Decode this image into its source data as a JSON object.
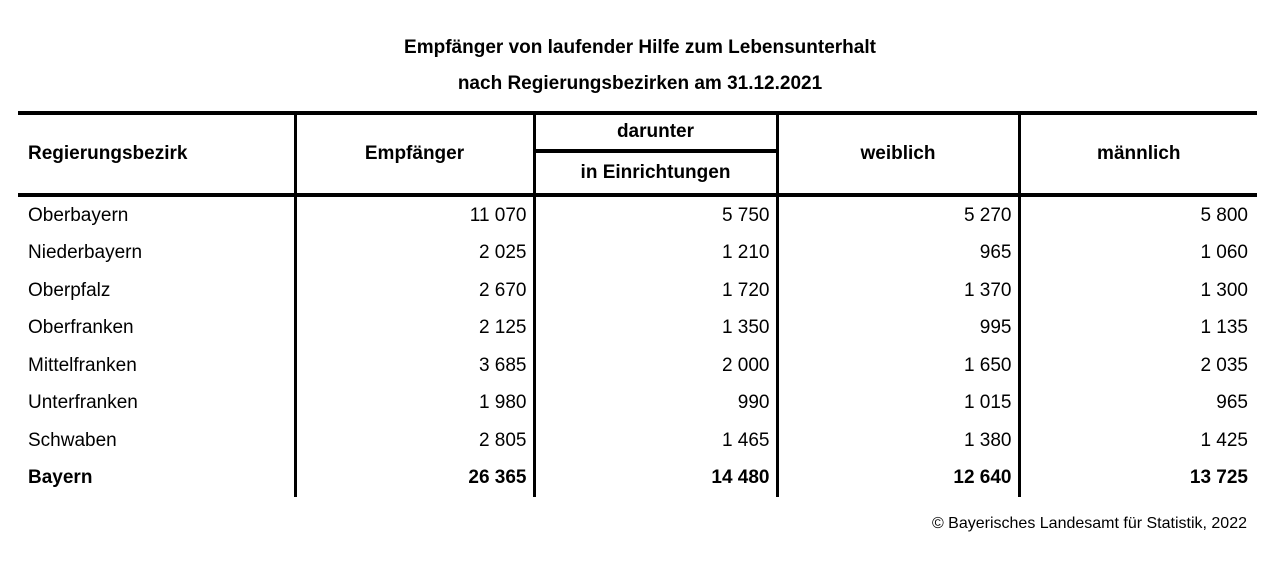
{
  "title": {
    "line1": "Empfänger von laufender Hilfe zum Lebensunterhalt",
    "line2": "nach Regierungsbezirken am 31.12.2021"
  },
  "table": {
    "columns": {
      "region": "Regierungsbezirk",
      "recipients": "Empfänger",
      "subgroup": "darunter",
      "subgroup_sub": "in Einrichtungen",
      "female": "weiblich",
      "male": "männlich"
    },
    "rows": [
      {
        "region": "Oberbayern",
        "recipients": "11 070",
        "in_facilities": "5 750",
        "female": "5 270",
        "male": "5 800",
        "is_total": false
      },
      {
        "region": "Niederbayern",
        "recipients": "2 025",
        "in_facilities": "1 210",
        "female": "965",
        "male": "1 060",
        "is_total": false
      },
      {
        "region": "Oberpfalz",
        "recipients": "2 670",
        "in_facilities": "1 720",
        "female": "1 370",
        "male": "1 300",
        "is_total": false
      },
      {
        "region": "Oberfranken",
        "recipients": "2 125",
        "in_facilities": "1 350",
        "female": "995",
        "male": "1 135",
        "is_total": false
      },
      {
        "region": "Mittelfranken",
        "recipients": "3 685",
        "in_facilities": "2 000",
        "female": "1 650",
        "male": "2 035",
        "is_total": false
      },
      {
        "region": "Unterfranken",
        "recipients": "1 980",
        "in_facilities": "990",
        "female": "1 015",
        "male": "965",
        "is_total": false
      },
      {
        "region": "Schwaben",
        "recipients": "2 805",
        "in_facilities": "1 465",
        "female": "1 380",
        "male": "1 425",
        "is_total": false
      },
      {
        "region": "Bayern",
        "recipients": "26 365",
        "in_facilities": "14 480",
        "female": "12 640",
        "male": "13 725",
        "is_total": true
      }
    ]
  },
  "footer": {
    "copyright": "© Bayerisches Landesamt für Statistik, 2022"
  },
  "colors": {
    "text": "#000000",
    "border": "#000000",
    "background": "#ffffff"
  },
  "chart_data": {
    "type": "table",
    "title": "Empfänger von laufender Hilfe zum Lebensunterhalt nach Regierungsbezirken am 31.12.2021",
    "columns": [
      "Regierungsbezirk",
      "Empfänger",
      "darunter in Einrichtungen",
      "weiblich",
      "männlich"
    ],
    "categories": [
      "Oberbayern",
      "Niederbayern",
      "Oberpfalz",
      "Oberfranken",
      "Mittelfranken",
      "Unterfranken",
      "Schwaben",
      "Bayern"
    ],
    "series": [
      {
        "name": "Empfänger",
        "values": [
          11070,
          2025,
          2670,
          2125,
          3685,
          1980,
          2805,
          26365
        ]
      },
      {
        "name": "darunter in Einrichtungen",
        "values": [
          5750,
          1210,
          1720,
          1350,
          2000,
          990,
          1465,
          14480
        ]
      },
      {
        "name": "weiblich",
        "values": [
          5270,
          965,
          1370,
          995,
          1650,
          1015,
          1380,
          12640
        ]
      },
      {
        "name": "männlich",
        "values": [
          5800,
          1060,
          1300,
          1135,
          2035,
          965,
          1425,
          13725
        ]
      }
    ]
  }
}
